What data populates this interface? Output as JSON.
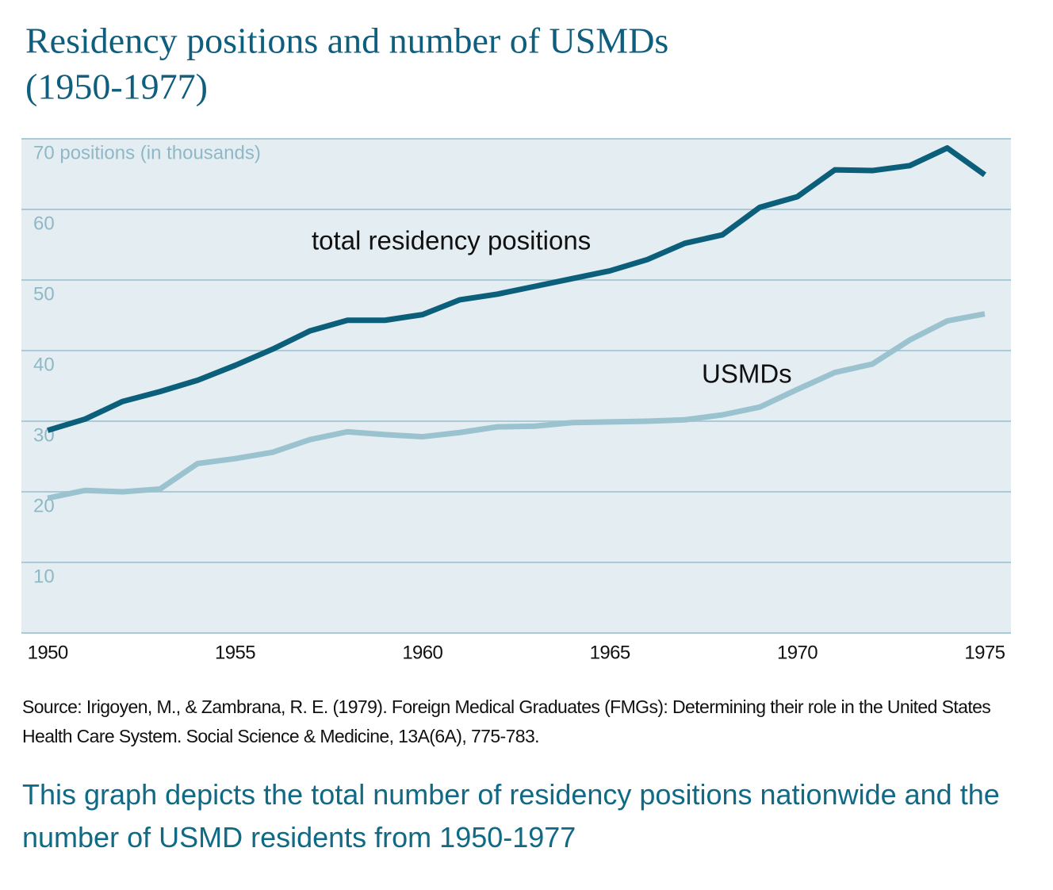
{
  "chart_data": {
    "type": "line",
    "title": "Residency positions and number of USMDs",
    "subtitle": "(1950-1977)",
    "x": [
      1950,
      1951,
      1952,
      1953,
      1954,
      1955,
      1956,
      1957,
      1958,
      1959,
      1960,
      1961,
      1962,
      1963,
      1964,
      1965,
      1966,
      1967,
      1968,
      1969,
      1970,
      1971,
      1972,
      1973,
      1974,
      1975
    ],
    "xlim": [
      1949.3,
      1975.7
    ],
    "xticks": [
      1950,
      1955,
      1960,
      1965,
      1970,
      1975
    ],
    "ylim": [
      0,
      70
    ],
    "yticks": [
      10,
      20,
      30,
      40,
      50,
      60,
      {
        "value": 70,
        "label": "70 positions (in thousands)"
      }
    ],
    "grid": true,
    "series": [
      {
        "name": "total residency positions",
        "color": "#0b5f7a",
        "values": [
          28.7,
          30.3,
          32.8,
          34.2,
          35.8,
          37.9,
          40.2,
          42.8,
          44.3,
          44.3,
          45.1,
          47.2,
          48.0,
          49.1,
          50.2,
          51.3,
          52.9,
          55.2,
          56.4,
          60.3,
          61.8,
          65.6,
          65.5,
          66.2,
          68.7,
          64.9
        ]
      },
      {
        "name": "USMDs",
        "color": "#9bc2cf",
        "values": [
          19.1,
          20.2,
          20.0,
          20.4,
          24.0,
          24.7,
          25.6,
          27.4,
          28.5,
          28.1,
          27.8,
          28.4,
          29.2,
          29.3,
          29.8,
          29.9,
          30.0,
          30.2,
          30.9,
          32.0,
          34.5,
          36.9,
          38.1,
          41.5,
          44.2,
          45.2
        ]
      }
    ],
    "source": "Source: Irigoyen, M., & Zambrana, R. E. (1979). Foreign Medical Graduates (FMGs): Determining their role in the United States Health Care System. Social Science & Medicine, 13A(6A), 775-783.",
    "caption": "This graph depicts the total number of residency positions nationwide and the number of USMD residents from 1950-1977"
  }
}
